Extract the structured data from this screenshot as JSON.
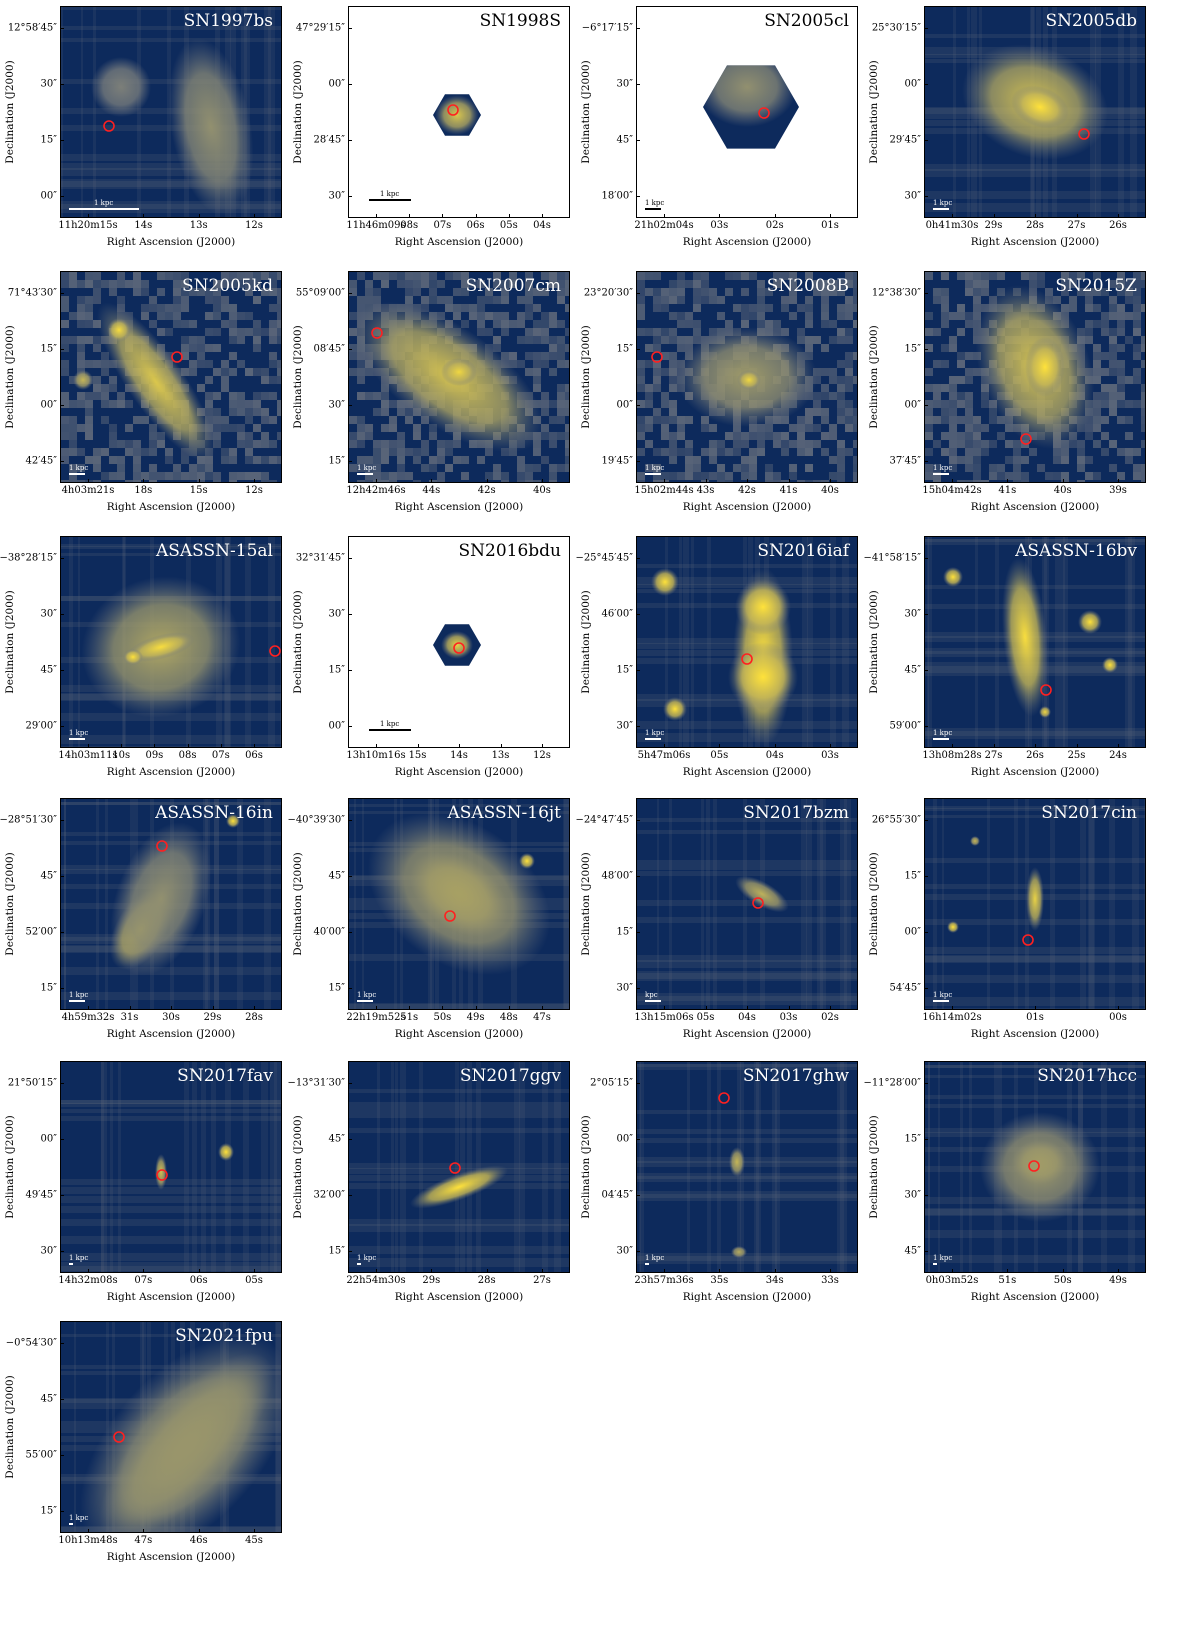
{
  "colors": {
    "background": "#0d2a5c",
    "mid": "#6d7480",
    "bright": "#ffe23a",
    "marker": "#ff2020"
  },
  "axis_labels": {
    "x": "Right Ascension (J2000)",
    "y": "Declination (J2000)"
  },
  "panels": [
    {
      "name": "SN1997bs",
      "scale": "1 kpc",
      "style": "filled",
      "yticks": [
        "12°58′45″",
        "30″",
        "15″",
        "00″"
      ],
      "xticks": [
        "11h20m15s",
        "14s",
        "13s",
        "12s"
      ]
    },
    {
      "name": "SN1998S",
      "scale": "1 kpc",
      "style": "hexsmall",
      "yticks": [
        "47°29′15″",
        "00″",
        "28′45″",
        "30″"
      ],
      "xticks": [
        "11h46m09s",
        "08s",
        "07s",
        "06s",
        "05s",
        "04s"
      ]
    },
    {
      "name": "SN2005cl",
      "scale": "1 kpc",
      "style": "hexlarge",
      "yticks": [
        "−6°17′15″",
        "30″",
        "45″",
        "18′00″"
      ],
      "xticks": [
        "21h02m04s",
        "03s",
        "02s",
        "01s"
      ]
    },
    {
      "name": "SN2005db",
      "scale": "1 kpc",
      "style": "filled",
      "yticks": [
        "25°30′15″",
        "00″",
        "29′45″",
        "30″"
      ],
      "xticks": [
        "0h41m30s",
        "29s",
        "28s",
        "27s",
        "26s"
      ]
    },
    {
      "name": "SN2005kd",
      "scale": "1 kpc",
      "style": "pixel",
      "yticks": [
        "71°43′30″",
        "15″",
        "00″",
        "42′45″"
      ],
      "xticks": [
        "4h03m21s",
        "18s",
        "15s",
        "12s"
      ]
    },
    {
      "name": "SN2007cm",
      "scale": "1 kpc",
      "style": "pixel",
      "yticks": [
        "55°09′00″",
        "08′45″",
        "30″",
        "15″"
      ],
      "xticks": [
        "12h42m46s",
        "44s",
        "42s",
        "40s"
      ]
    },
    {
      "name": "SN2008B",
      "scale": "1 kpc",
      "style": "pixel",
      "yticks": [
        "23°20′30″",
        "15″",
        "00″",
        "19′45″"
      ],
      "xticks": [
        "15h02m44s",
        "43s",
        "42s",
        "41s",
        "40s"
      ]
    },
    {
      "name": "SN2015Z",
      "scale": "1 kpc",
      "style": "pixel",
      "yticks": [
        "12°38′30″",
        "15″",
        "00″",
        "37′45″"
      ],
      "xticks": [
        "15h04m42s",
        "41s",
        "40s",
        "39s"
      ]
    },
    {
      "name": "ASASSN-15al",
      "scale": "1 kpc",
      "style": "filled",
      "yticks": [
        "−38°28′15″",
        "30″",
        "45″",
        "29′00″"
      ],
      "xticks": [
        "14h03m11s",
        "10s",
        "09s",
        "08s",
        "07s",
        "06s"
      ]
    },
    {
      "name": "SN2016bdu",
      "scale": "1 kpc",
      "style": "hexsmall",
      "yticks": [
        "32°31′45″",
        "30″",
        "15″",
        "00″"
      ],
      "xticks": [
        "13h10m16s",
        "15s",
        "14s",
        "13s",
        "12s"
      ]
    },
    {
      "name": "SN2016iaf",
      "scale": "1 kpc",
      "style": "filled",
      "yticks": [
        "−25°45′45″",
        "46′00″",
        "15″",
        "30″"
      ],
      "xticks": [
        "5h47m06s",
        "05s",
        "04s",
        "03s"
      ]
    },
    {
      "name": "ASASSN-16bv",
      "scale": "1 kpc",
      "style": "filled",
      "yticks": [
        "−41°58′15″",
        "30″",
        "45″",
        "59′00″"
      ],
      "xticks": [
        "13h08m28s",
        "27s",
        "26s",
        "25s",
        "24s"
      ]
    },
    {
      "name": "ASASSN-16in",
      "scale": "1 kpc",
      "style": "filled",
      "yticks": [
        "−28°51′30″",
        "45″",
        "52′00″",
        "15″"
      ],
      "xticks": [
        "4h59m32s",
        "31s",
        "30s",
        "29s",
        "28s"
      ]
    },
    {
      "name": "ASASSN-16jt",
      "scale": "1 kpc",
      "style": "filled",
      "yticks": [
        "−40°39′30″",
        "45″",
        "40′00″",
        "15″"
      ],
      "xticks": [
        "22h19m52s",
        "51s",
        "50s",
        "49s",
        "48s",
        "47s"
      ]
    },
    {
      "name": "SN2017bzm",
      "scale": "kpc",
      "style": "filled",
      "yticks": [
        "−24°47′45″",
        "48′00″",
        "15″",
        "30″"
      ],
      "xticks": [
        "13h15m06s",
        "05s",
        "04s",
        "03s",
        "02s"
      ]
    },
    {
      "name": "SN2017cin",
      "scale": "1 kpc",
      "style": "filled",
      "yticks": [
        "26°55′30″",
        "15″",
        "00″",
        "54′45″"
      ],
      "xticks": [
        "16h14m02s",
        "01s",
        "00s"
      ]
    },
    {
      "name": "SN2017fav",
      "scale": "1 kpc",
      "style": "filled",
      "yticks": [
        "21°50′15″",
        "00″",
        "49′45″",
        "30″"
      ],
      "xticks": [
        "14h32m08s",
        "07s",
        "06s",
        "05s"
      ]
    },
    {
      "name": "SN2017ggv",
      "scale": "1 kpc",
      "style": "filled",
      "yticks": [
        "−13°31′30″",
        "45″",
        "32′00″",
        "15″"
      ],
      "xticks": [
        "22h54m30s",
        "29s",
        "28s",
        "27s"
      ]
    },
    {
      "name": "SN2017ghw",
      "scale": "1 kpc",
      "style": "filled",
      "yticks": [
        "2°05′15″",
        "00″",
        "04′45″",
        "30″"
      ],
      "xticks": [
        "23h57m36s",
        "35s",
        "34s",
        "33s"
      ]
    },
    {
      "name": "SN2017hcc",
      "scale": "1 kpc",
      "style": "filled",
      "yticks": [
        "−11°28′00″",
        "15″",
        "30″",
        "45″"
      ],
      "xticks": [
        "0h03m52s",
        "51s",
        "50s",
        "49s"
      ]
    },
    {
      "name": "SN2021fpu",
      "scale": "1 kpc",
      "style": "filled",
      "yticks": [
        "−0°54′30″",
        "45″",
        "55′00″",
        "15″"
      ],
      "xticks": [
        "10h13m48s",
        "47s",
        "46s",
        "45s"
      ]
    }
  ]
}
